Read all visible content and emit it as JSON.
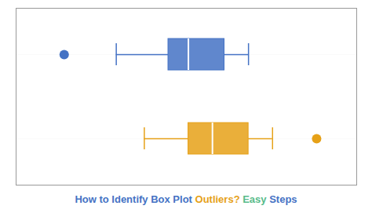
{
  "chart_data": {
    "type": "boxplot",
    "title_parts": [
      {
        "text": "How to Identify Box Plot ",
        "color": "#4472c4"
      },
      {
        "text": "Outliers? ",
        "color": "#e6a118"
      },
      {
        "text": "Easy ",
        "color": "#57bb8a"
      },
      {
        "text": "Steps",
        "color": "#4472c4"
      }
    ],
    "categories": [
      null,
      null
    ],
    "series": [
      {
        "color": "#4472c4",
        "whisker_low": 3.5,
        "q1": 4.8,
        "median": 5.3,
        "q3": 6.2,
        "whisker_high": 6.8,
        "outliers": [
          2.2
        ]
      },
      {
        "color": "#e6a118",
        "whisker_low": 4.2,
        "q1": 5.3,
        "median": 5.9,
        "q3": 6.8,
        "whisker_high": 7.4,
        "outliers": [
          8.5
        ]
      }
    ],
    "xlim": [
      1.0,
      9.5
    ],
    "xticks": [],
    "grid": true,
    "tick_labels": false
  }
}
